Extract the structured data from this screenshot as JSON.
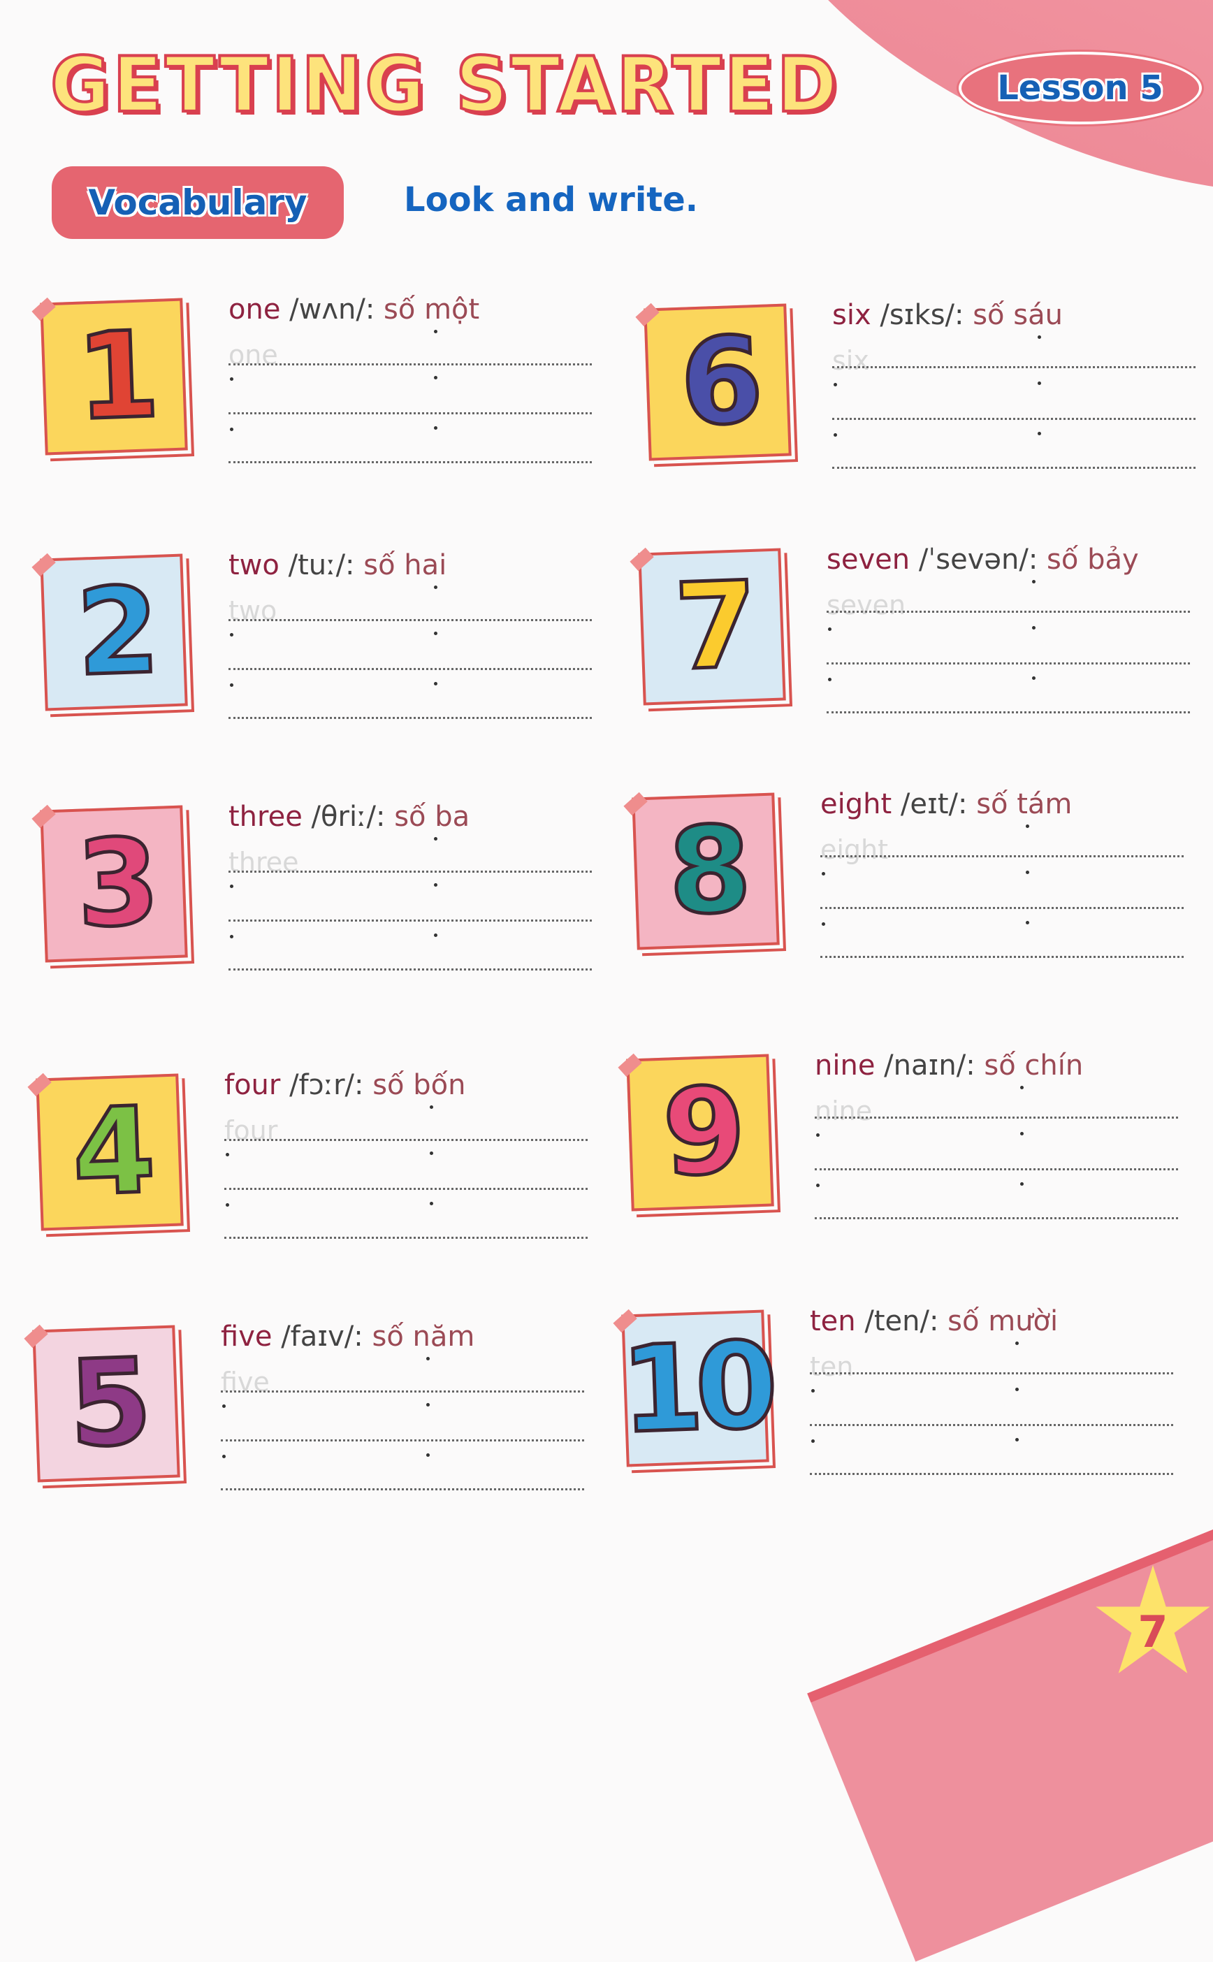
{
  "header": {
    "title": "GETTING STARTED",
    "lesson": "Lesson 5"
  },
  "section": {
    "label": "Vocabulary",
    "instruction": "Look and write."
  },
  "items": [
    {
      "numeral": "1",
      "word": "one",
      "phonetic": "/wʌn/:",
      "meaning": "số một",
      "trace": "one",
      "bg": "#fbd65c",
      "color": "#e04434"
    },
    {
      "numeral": "2",
      "word": "two",
      "phonetic": "/tuː/:",
      "meaning": "số hai",
      "trace": "two",
      "bg": "#d8e9f4",
      "color": "#2f9ad8"
    },
    {
      "numeral": "3",
      "word": "three",
      "phonetic": "/θriː/:",
      "meaning": "số ba",
      "trace": "three",
      "bg": "#f4b5c3",
      "color": "#e0497a"
    },
    {
      "numeral": "4",
      "word": "four",
      "phonetic": "/fɔːr/:",
      "meaning": "số bốn",
      "trace": "four",
      "bg": "#fbd65c",
      "color": "#7cc145"
    },
    {
      "numeral": "5",
      "word": "five",
      "phonetic": "/faɪv/:",
      "meaning": "số năm",
      "trace": "five",
      "bg": "#f3d4e0",
      "color": "#8e3a86"
    },
    {
      "numeral": "6",
      "word": "six",
      "phonetic": "/sɪks/:",
      "meaning": "số sáu",
      "trace": "six",
      "bg": "#fbd65c",
      "color": "#4a4fa8"
    },
    {
      "numeral": "7",
      "word": "seven",
      "phonetic": "/ˈsevən/:",
      "meaning": "số bảy",
      "trace": "seven",
      "bg": "#d8e9f4",
      "color": "#fbcb2e"
    },
    {
      "numeral": "8",
      "word": "eight",
      "phonetic": "/eɪt/:",
      "meaning": "số tám",
      "trace": "eight",
      "bg": "#f4b5c3",
      "color": "#1e8c86"
    },
    {
      "numeral": "9",
      "word": "nine",
      "phonetic": "/naɪn/:",
      "meaning": "số chín",
      "trace": "nine",
      "bg": "#fbd65c",
      "color": "#e84a78"
    },
    {
      "numeral": "10",
      "word": "ten",
      "phonetic": "/ten/:",
      "meaning": "số mười",
      "trace": "ten",
      "bg": "#d8e9f4",
      "color": "#2f9ad8"
    }
  ],
  "page_number": "7"
}
